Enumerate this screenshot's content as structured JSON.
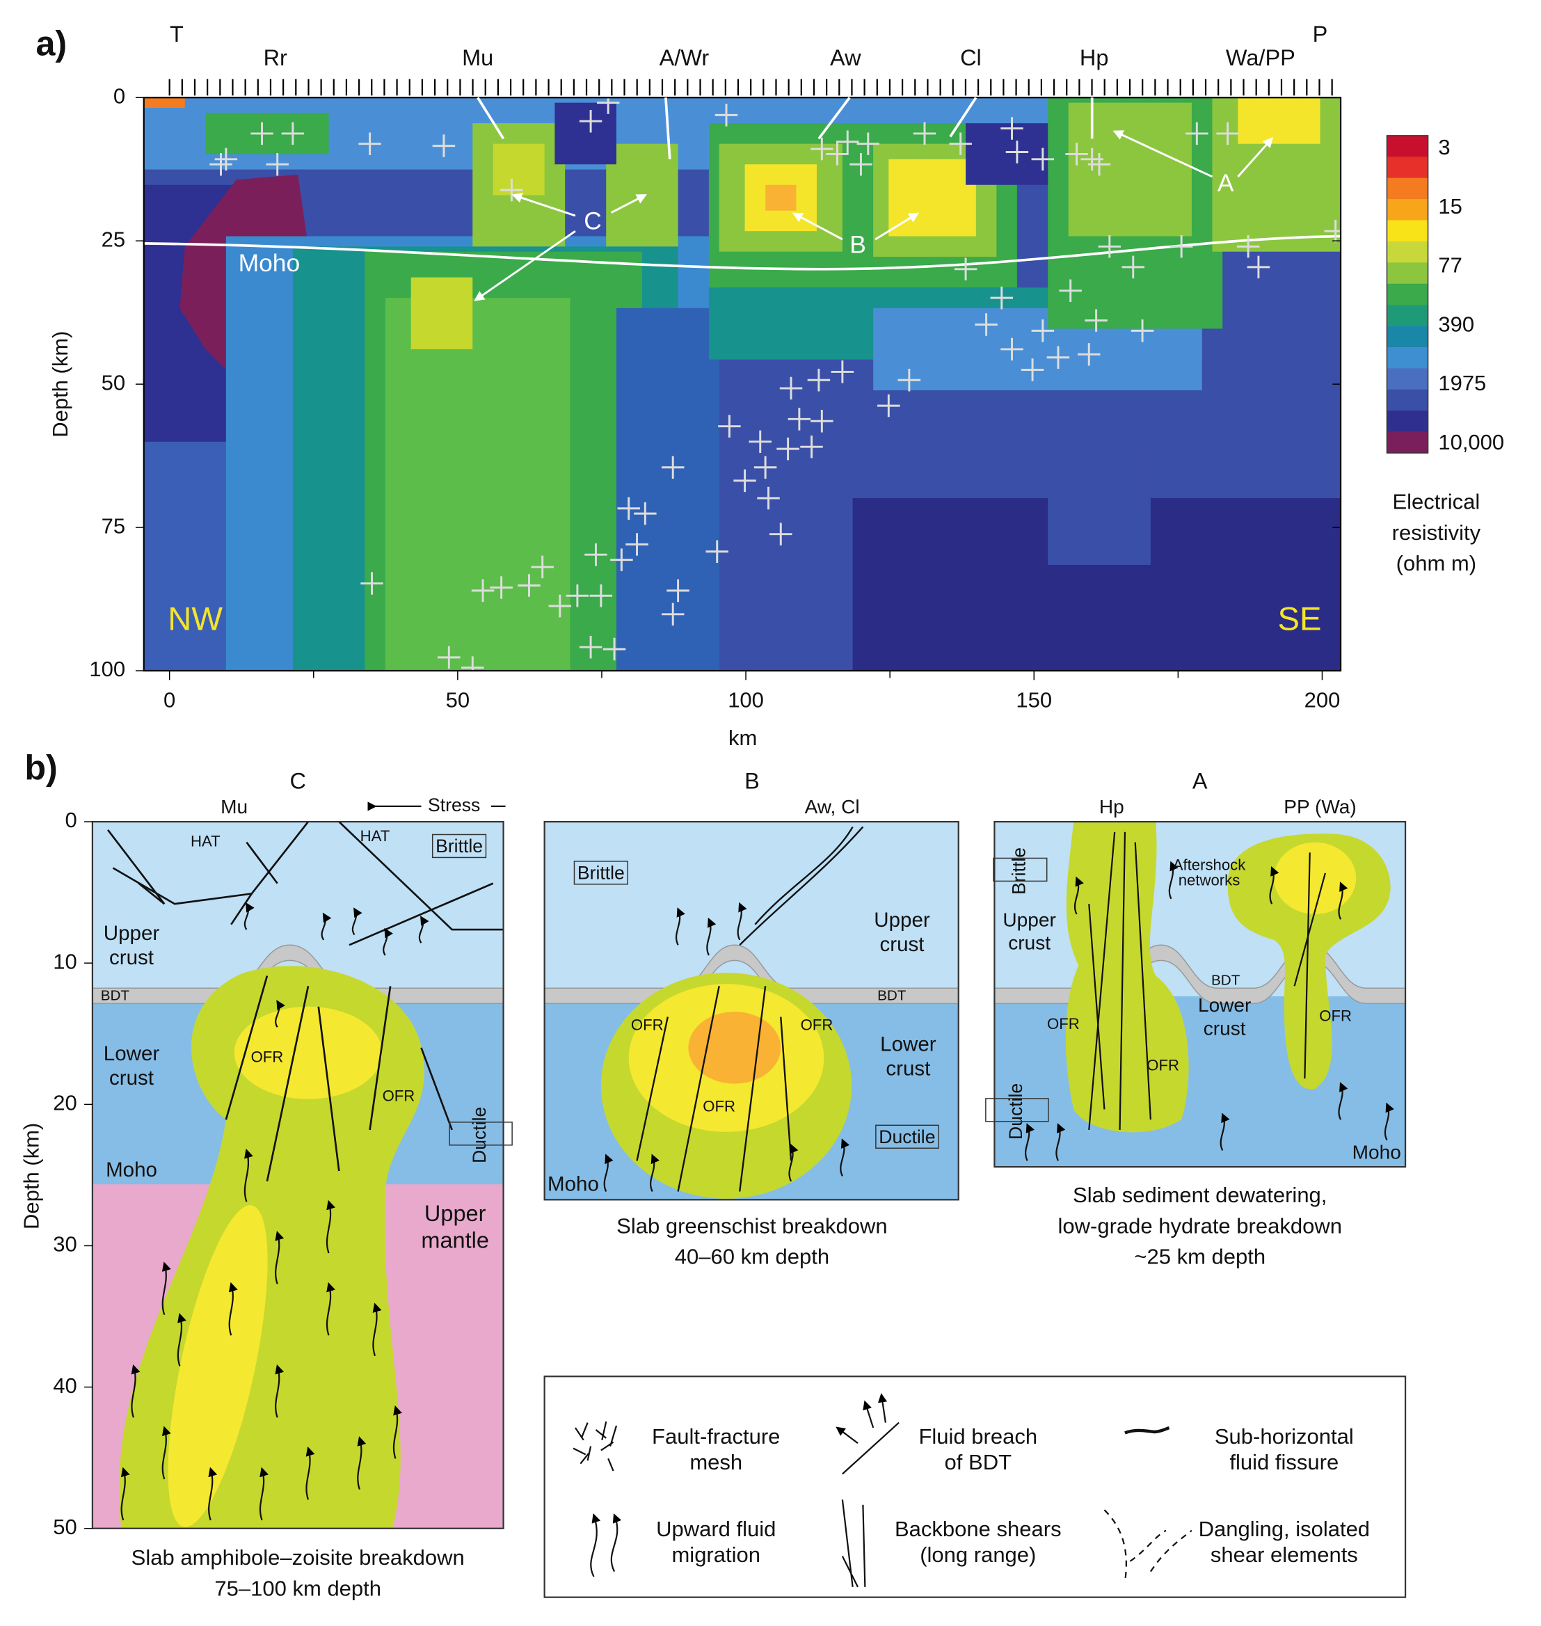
{
  "panel_a": {
    "label": "a)",
    "stations": [
      "T",
      "Rr",
      "Mu",
      "A/Wr",
      "Aw",
      "Cl",
      "Hp",
      "Wa/PP",
      "P"
    ],
    "y_axis": {
      "title": "Depth (km)",
      "ticks": [
        0,
        25,
        50,
        75,
        100
      ]
    },
    "x_axis": {
      "title": "km",
      "ticks": [
        0,
        50,
        100,
        150,
        200
      ]
    },
    "annotations": {
      "moho": "Moho",
      "c": "C",
      "b": "B",
      "a": "A",
      "nw": "NW",
      "se": "SE"
    },
    "colorbar": {
      "ticks": [
        "3",
        "15",
        "77",
        "390",
        "1975",
        "10,000"
      ],
      "title": [
        "Electrical",
        "resistivity",
        "(ohm m)"
      ]
    }
  },
  "panel_b": {
    "label": "b)",
    "y_axis": {
      "title": "Depth (km)",
      "ticks": [
        0,
        10,
        20,
        30,
        40,
        50
      ]
    },
    "c": {
      "header": "C",
      "site": "Mu",
      "stress": "Stress",
      "hat1": "HAT",
      "hat2": "HAT",
      "brittle": "Brittle",
      "upper_crust": [
        "Upper",
        "crust"
      ],
      "bdt": "BDT",
      "lower_crust": [
        "Lower",
        "crust"
      ],
      "ofr1": "OFR",
      "ofr2": "OFR",
      "moho": "Moho",
      "ductile": "Ductile",
      "upper_mantle": [
        "Upper",
        "mantle"
      ],
      "caption": [
        "Slab amphibole–zoisite breakdown",
        "75–100 km depth"
      ]
    },
    "b": {
      "header": "B",
      "site": "Aw, Cl",
      "brittle": "Brittle",
      "upper_crust": [
        "Upper",
        "crust"
      ],
      "bdt": "BDT",
      "ofr1": "OFR",
      "ofr2": "OFR",
      "ofr3": "OFR",
      "lower_crust": [
        "Lower",
        "crust"
      ],
      "ductile": "Ductile",
      "moho": "Moho",
      "caption": [
        "Slab greenschist breakdown",
        "40–60 km depth"
      ]
    },
    "a": {
      "header": "A",
      "site1": "Hp",
      "site2": "PP (Wa)",
      "brittle": "Brittle",
      "aftershock": [
        "Aftershock",
        "networks"
      ],
      "upper_crust": [
        "Upper",
        "crust"
      ],
      "bdt": "BDT",
      "lower_crust": [
        "Lower",
        "crust"
      ],
      "ofr1": "OFR",
      "ofr2": "OFR",
      "ofr3": "OFR",
      "ductile": "Ductile",
      "moho": "Moho",
      "caption": [
        "Slab sediment dewatering,",
        "low-grade hydrate breakdown",
        "~25 km depth"
      ]
    },
    "legend": [
      [
        "Fault-fracture",
        "mesh"
      ],
      [
        "Fluid breach",
        "of BDT"
      ],
      [
        "Sub-horizontal",
        "fluid fissure"
      ],
      [
        "Upward fluid",
        "migration"
      ],
      [
        "Backbone shears",
        "(long range)"
      ],
      [
        "Dangling, isolated",
        "shear elements"
      ]
    ]
  }
}
